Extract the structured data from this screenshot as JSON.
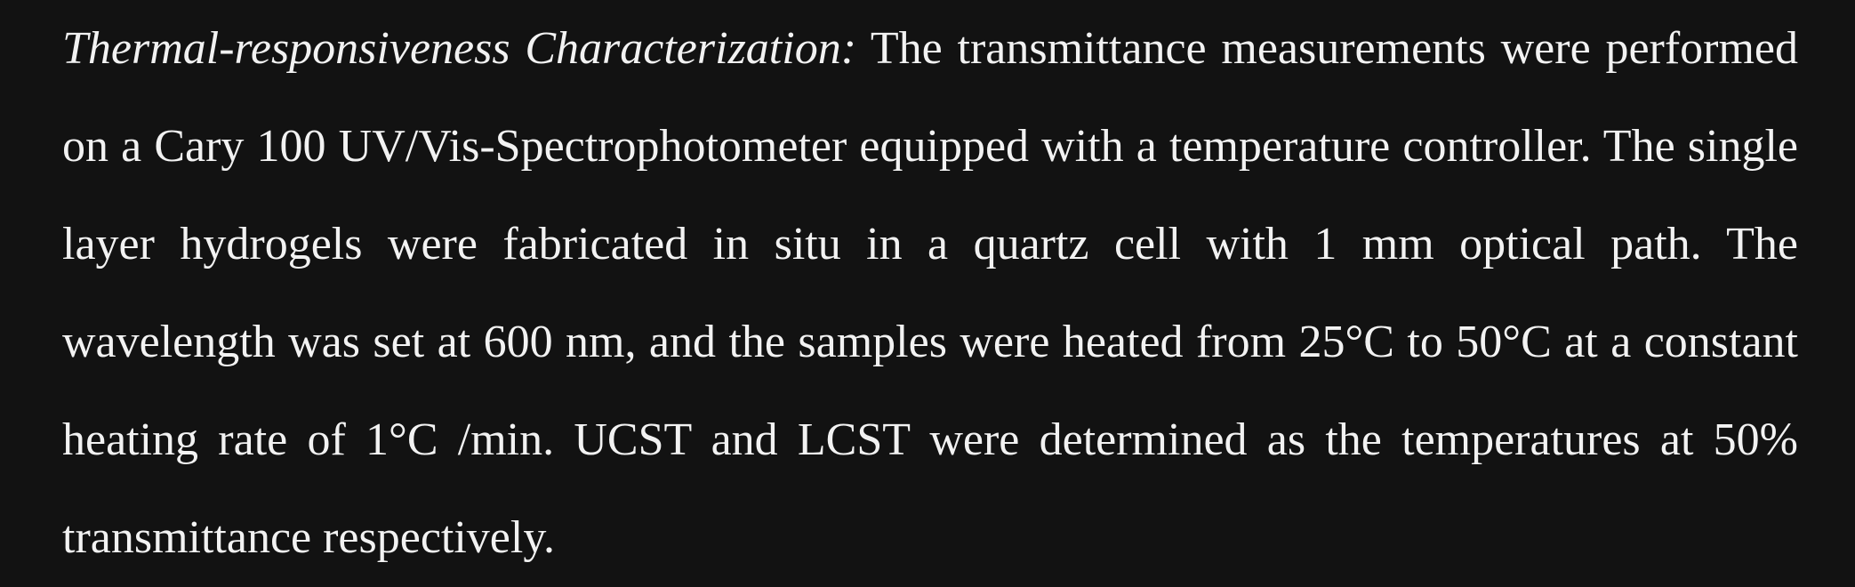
{
  "paragraph": {
    "heading": "Thermal-responsiveness Characterization:",
    "body": "The transmittance measurements were performed on a Cary 100 UV/Vis-Spectrophotometer equipped with a temperature controller. The single layer hydrogels were fabricated in situ in a quartz cell with 1 mm optical path. The wavelength was set at 600 nm, and the samples were heated from 25°C to 50°C at a constant heating rate of 1°C /min. UCST and LCST were determined as the temperatures at 50% transmittance respectively."
  }
}
